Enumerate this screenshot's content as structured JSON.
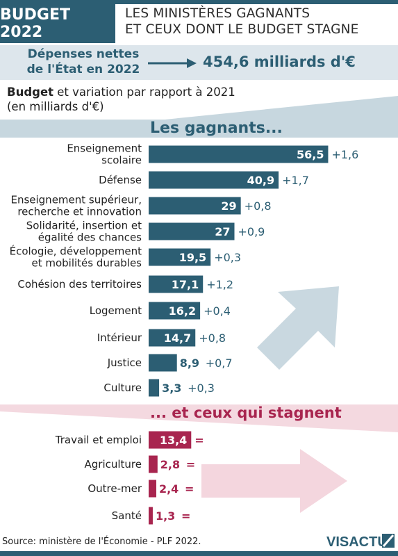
{
  "header": {
    "badge": "BUDGET 2022",
    "headline_line1": "LES MINISTÈRES GAGNANTS",
    "headline_line2": "ET CEUX DONT LE BUDGET STAGNE"
  },
  "spending": {
    "label_line1": "Dépenses nettes",
    "label_line2": "de l'État en 2022",
    "value": "454,6 milliards d'€"
  },
  "budget_title": {
    "bold": "Budget",
    "rest": " et variation par rapport à 2021",
    "line2": "(en milliards d'€)"
  },
  "sections": {
    "gainers": "Les gagnants...",
    "stagnant": "... et ceux qui stagnent"
  },
  "colors": {
    "gainers": "#2c5e73",
    "stagnant": "#a8254f",
    "gainers_bg": "#c7d7df",
    "stagnant_bg": "#f4d9e0"
  },
  "chart_data": {
    "type": "bar",
    "orientation": "horizontal",
    "xlim": [
      0,
      60
    ],
    "series": [
      {
        "name": "Les gagnants...",
        "categories": [
          [
            "Enseignement",
            "scolaire"
          ],
          [
            "Défense"
          ],
          [
            "Enseignement supérieur,",
            "recherche et innovation"
          ],
          [
            "Solidarité, insertion et",
            "égalité des chances"
          ],
          [
            "Écologie, développement",
            "et mobilités durables"
          ],
          [
            "Cohésion des territoires"
          ],
          [
            "Logement"
          ],
          [
            "Intérieur"
          ],
          [
            "Justice"
          ],
          [
            "Culture"
          ]
        ],
        "values": [
          56.5,
          40.9,
          29,
          27,
          19.5,
          17.1,
          16.2,
          14.7,
          8.9,
          3.3
        ],
        "value_labels": [
          "56,5",
          "40,9",
          "29",
          "27",
          "19,5",
          "17,1",
          "16,2",
          "14,7",
          "8,9",
          "3,3"
        ],
        "variation_labels": [
          "+1,6",
          "+1,7",
          "+0,8",
          "+0,9",
          "+0,3",
          "+1,2",
          "+0,4",
          "+0,8",
          "+0,7",
          "+0,3"
        ]
      },
      {
        "name": "... et ceux qui stagnent",
        "categories": [
          [
            "Travail et emploi"
          ],
          [
            "Agriculture"
          ],
          [
            "Outre-mer"
          ],
          [
            "Santé"
          ]
        ],
        "values": [
          13.4,
          2.8,
          2.4,
          1.3
        ],
        "value_labels": [
          "13,4",
          "2,8",
          "2,4",
          "1,3"
        ],
        "variation_labels": [
          "=",
          "=",
          "=",
          "="
        ]
      }
    ]
  },
  "footer": {
    "source": "Source: ministère de l'Économie - PLF 2022.",
    "logo_text": "VISACTU"
  }
}
